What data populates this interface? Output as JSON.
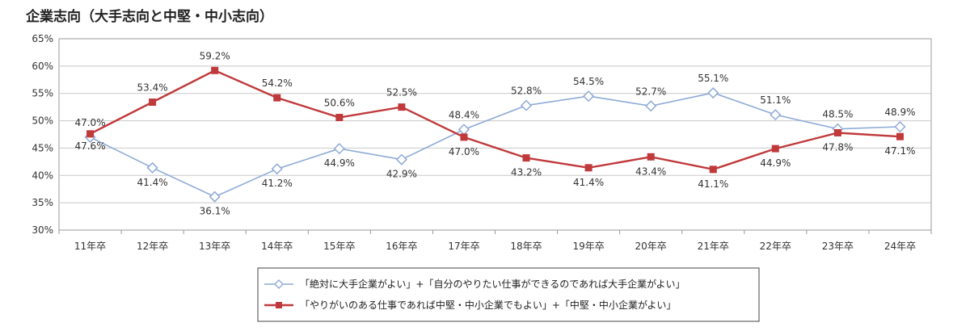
{
  "title": "企業志向（大手志向と中堅・中小志向）",
  "chart_data": {
    "type": "line",
    "title": "企業志向（大手志向と中堅・中小志向）",
    "categories": [
      "11年卒",
      "12年卒",
      "13年卒",
      "14年卒",
      "15年卒",
      "16年卒",
      "17年卒",
      "18年卒",
      "19年卒",
      "20年卒",
      "21年卒",
      "22年卒",
      "23年卒",
      "24年卒"
    ],
    "ylim": [
      30,
      65
    ],
    "yticks": [
      30,
      35,
      40,
      45,
      50,
      55,
      60,
      65
    ],
    "ytick_labels": [
      "30%",
      "35%",
      "40%",
      "45%",
      "50%",
      "55%",
      "60%",
      "65%"
    ],
    "grid": true,
    "series": [
      {
        "name": "「絶対に大手企業がよい」+「自分のやりたい仕事ができるのであれば大手企業がよい」",
        "values": [
          47.0,
          41.4,
          36.1,
          41.2,
          44.9,
          42.9,
          48.4,
          52.8,
          54.5,
          52.7,
          55.1,
          51.1,
          48.5,
          48.9
        ],
        "labels": [
          "47.0%",
          "41.4%",
          "36.1%",
          "41.2%",
          "44.9%",
          "42.9%",
          "48.4%",
          "52.8%",
          "54.5%",
          "52.7%",
          "55.1%",
          "51.1%",
          "48.5%",
          "48.9%"
        ],
        "color": "#8eaad6",
        "marker": "diamond"
      },
      {
        "name": "「やりがいのある仕事であれば中堅・中小企業でもよい」+「中堅・中小企業がよい」",
        "values": [
          47.6,
          53.4,
          59.2,
          54.2,
          50.6,
          52.5,
          47.0,
          43.2,
          41.4,
          43.4,
          41.1,
          44.9,
          47.8,
          47.1
        ],
        "labels": [
          "47.6%",
          "53.4%",
          "59.2%",
          "54.2%",
          "50.6%",
          "52.5%",
          "47.0%",
          "43.2%",
          "41.4%",
          "43.4%",
          "41.1%",
          "44.9%",
          "47.8%",
          "47.1%"
        ],
        "color": "#c0393b",
        "marker": "square"
      }
    ]
  }
}
